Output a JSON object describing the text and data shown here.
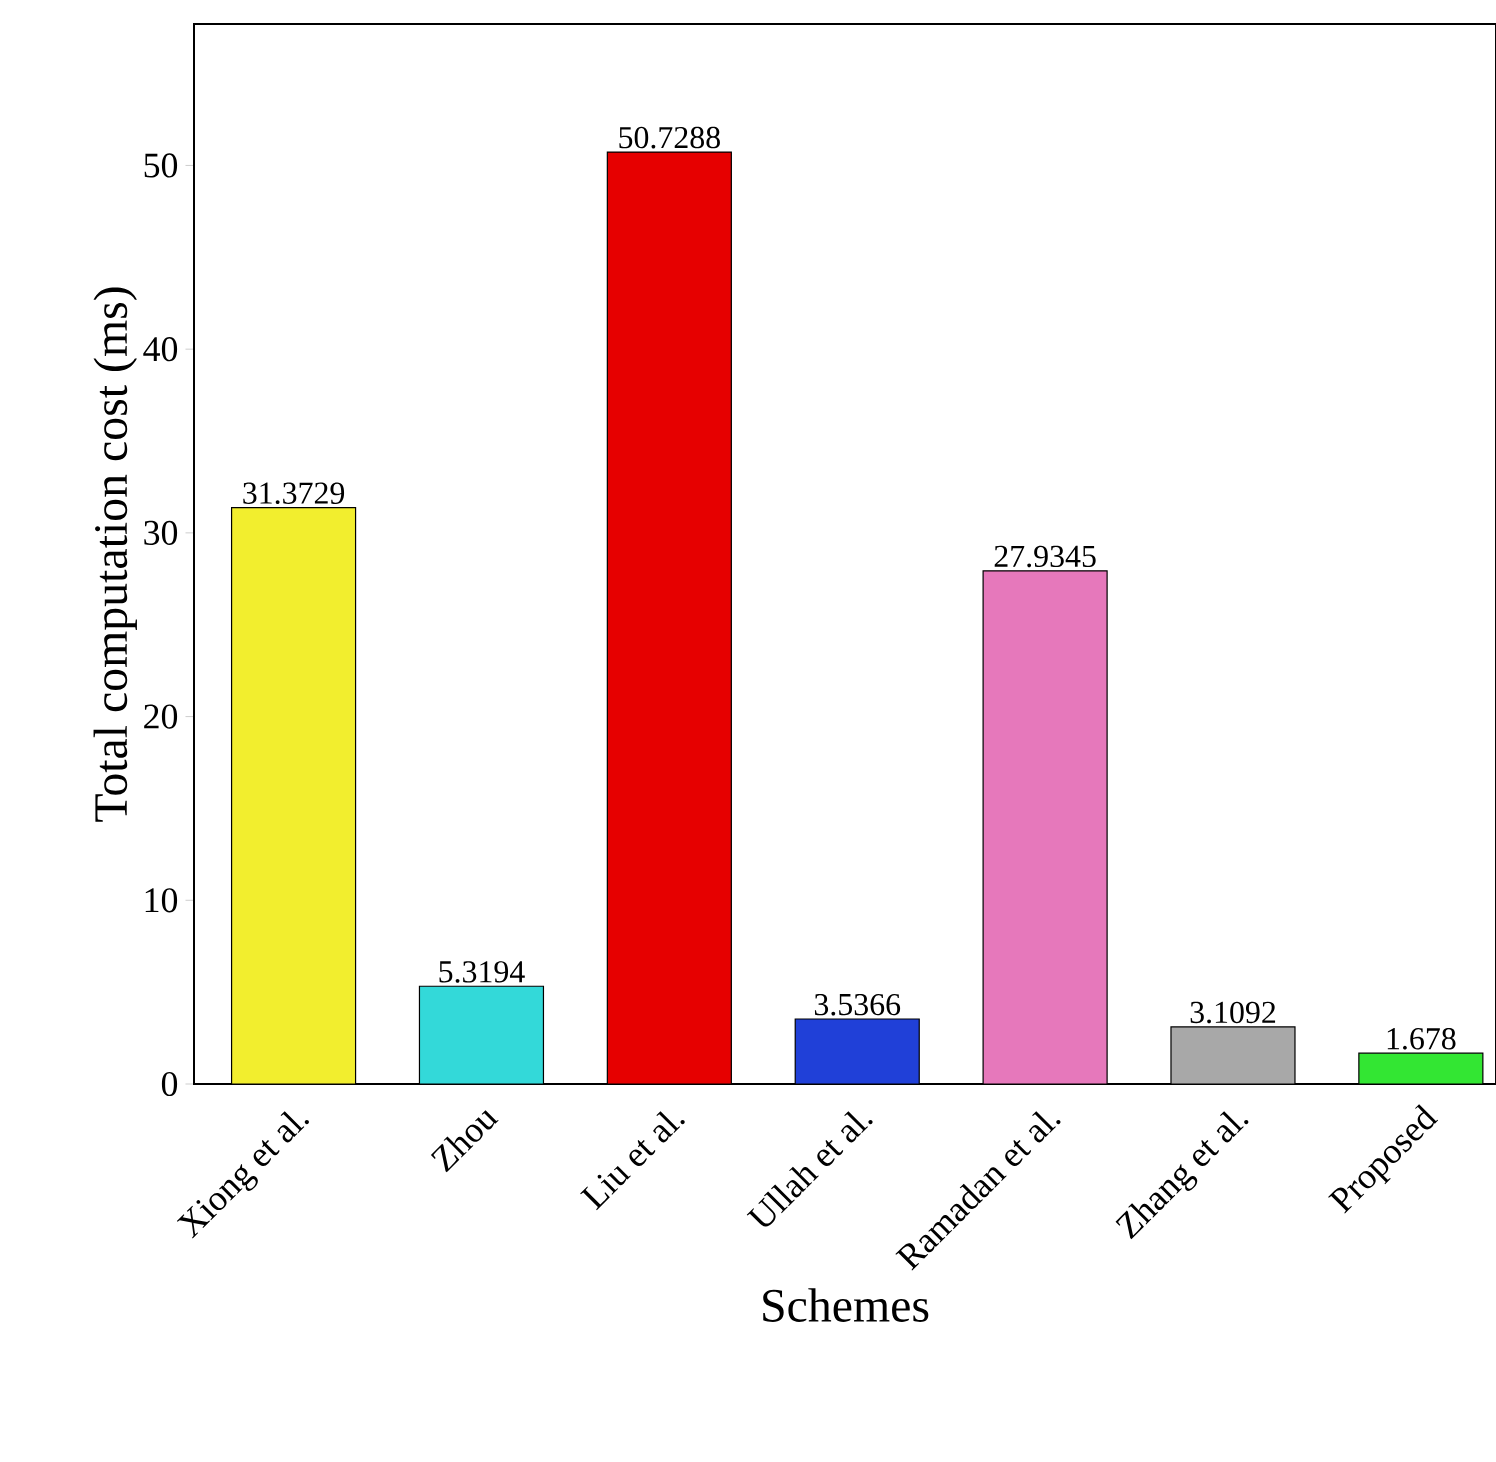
{
  "chart_data": {
    "type": "bar",
    "xlabel": "Schemes",
    "ylabel": "Total computation cost (ms)",
    "categories": [
      "Xiong et al.",
      "Zhou",
      "Liu et al.",
      "Ullah et al.",
      "Ramadan et al.",
      "Zhang et al.",
      "Proposed"
    ],
    "values": [
      31.3729,
      5.3194,
      50.7288,
      3.5366,
      27.9345,
      3.1092,
      1.678
    ],
    "colors": [
      "#f2ee2e",
      "#33d9d9",
      "#e60000",
      "#2040d8",
      "#e678bb",
      "#a8a8a8",
      "#33e633"
    ],
    "data_labels": true,
    "ylim": [
      0,
      57.7
    ],
    "yticks": [
      0,
      10,
      20,
      30,
      40,
      50
    ]
  }
}
